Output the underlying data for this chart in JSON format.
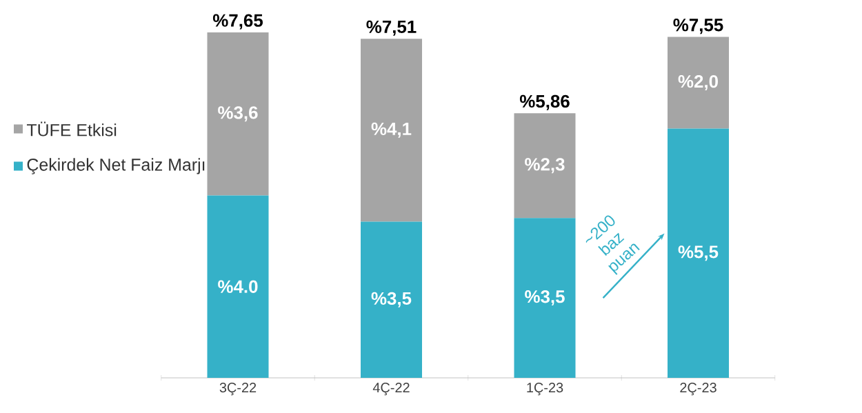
{
  "chart_data": {
    "type": "bar",
    "stacked": true,
    "legend": "left",
    "categories": [
      "3Ç-22",
      "4Ç-22",
      "1Ç-23",
      "2Ç-23"
    ],
    "series": [
      {
        "name": "Çekirdek Net Faiz Marjı",
        "color": "#35b1c8",
        "values": [
          4.04,
          3.46,
          3.54,
          5.52
        ],
        "value_labels": [
          "%4.0",
          "%3,5",
          "%3,5",
          "%5,5"
        ]
      },
      {
        "name": "TÜFE Etkisi",
        "color": "#a5a5a5",
        "values": [
          3.61,
          4.05,
          2.32,
          2.03
        ],
        "value_labels": [
          "%3,6",
          "%4,1",
          "%2,3",
          "%2,0"
        ]
      }
    ],
    "totals": [
      "%7,65",
      "%7,51",
      "%5,86",
      "%7,55"
    ],
    "annotations": [
      "~200 baz puan"
    ]
  }
}
